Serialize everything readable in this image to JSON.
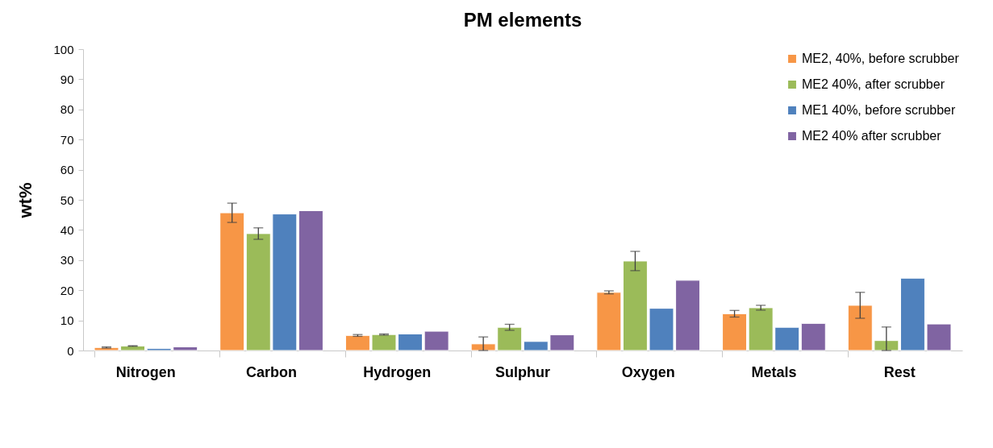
{
  "chart_data": {
    "type": "bar",
    "title": "PM elements",
    "ylabel": "wt%",
    "categories": [
      "Nitrogen",
      "Carbon",
      "Hydrogen",
      "Sulphur",
      "Oxygen",
      "Metals",
      "Rest"
    ],
    "series": [
      {
        "name": "ME2, 40%, before scrubber",
        "color": "#f79646",
        "values": [
          1.0,
          45.7,
          5.0,
          2.2,
          19.3,
          12.2,
          15.0
        ],
        "errors": [
          0.2,
          3.2,
          0.3,
          [
            0,
            4.5
          ],
          0.5,
          1.1,
          4.3
        ]
      },
      {
        "name": "ME2 40%, after scrubber",
        "color": "#9bbb59",
        "values": [
          1.5,
          38.8,
          5.3,
          7.7,
          29.7,
          14.2,
          3.3
        ],
        "errors": [
          0.1,
          1.9,
          0.2,
          1.0,
          3.2,
          0.8,
          [
            0,
            7.8
          ]
        ]
      },
      {
        "name": "ME1 40%, before scrubber",
        "color": "#4f81bd",
        "values": [
          0.7,
          45.3,
          5.5,
          3.0,
          14.0,
          7.7,
          24.0
        ]
      },
      {
        "name": "ME2 40% after scrubber",
        "color": "#8064a2",
        "values": [
          1.2,
          46.4,
          6.4,
          5.2,
          23.3,
          9.0,
          8.8
        ]
      }
    ],
    "ylim": [
      0,
      100
    ],
    "yticks": [
      0,
      10,
      20,
      30,
      40,
      50,
      60,
      70,
      80,
      90,
      100
    ],
    "grid": false,
    "legend": "top right"
  }
}
